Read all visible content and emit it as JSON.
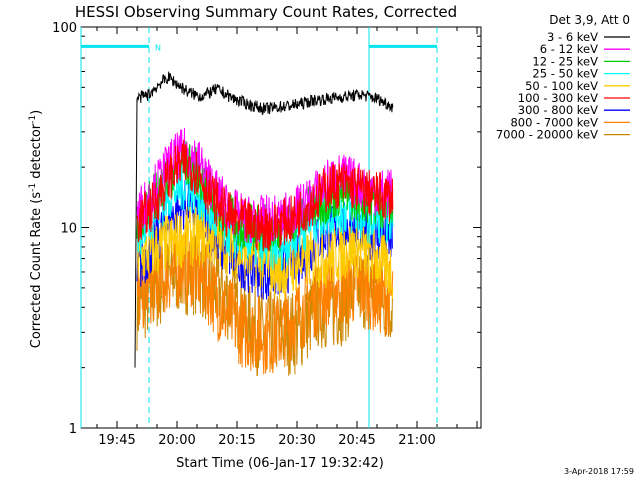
{
  "chart_data": {
    "type": "line",
    "title": "HESSI Observing Summary Count Rates, Corrected",
    "xlabel": "Start Time (06-Jan-17 19:32:42)",
    "ylabel_main": "Corrected Count Rate (s",
    "ylabel_sup1": "-1",
    "ylabel_mid": " detector",
    "ylabel_sup2": "-1",
    "ylabel_end": ")",
    "yscale": "log",
    "ylim": [
      1,
      100
    ],
    "xlim_min": [
      36,
      136
    ],
    "x_ticks": [
      {
        "min": 45,
        "label": "19:45"
      },
      {
        "min": 60,
        "label": "20:00"
      },
      {
        "min": 75,
        "label": "20:15"
      },
      {
        "min": 90,
        "label": "20:30"
      },
      {
        "min": 105,
        "label": "20:45"
      },
      {
        "min": 120,
        "label": "21:00"
      }
    ],
    "y_ticks": [
      {
        "value": 1,
        "label": "1"
      },
      {
        "value": 10,
        "label": "10"
      },
      {
        "value": 100,
        "label": "100"
      }
    ],
    "legend_header": "Det 3,9, Att 0",
    "series": [
      {
        "name": "3 - 6 keV",
        "color": "#000000",
        "x": [
          49.5,
          50,
          53,
          56,
          58,
          60,
          63,
          66,
          70,
          74,
          78,
          82,
          86,
          90,
          94,
          98,
          102,
          106,
          110,
          114
        ],
        "values": [
          2,
          44,
          46,
          53,
          56,
          52,
          47,
          45,
          49,
          44,
          41,
          39,
          40,
          41,
          43,
          44,
          45,
          46,
          44,
          40
        ]
      },
      {
        "name": "6 - 12 keV",
        "color": "#ff00ff",
        "x": [
          50,
          53,
          56,
          59,
          62,
          65,
          68,
          71,
          74,
          77,
          80,
          83,
          86,
          89,
          92,
          95,
          98,
          101,
          104,
          107,
          110,
          114
        ],
        "values": [
          12,
          14,
          18,
          22,
          24,
          22,
          17,
          14,
          12,
          11,
          11,
          11,
          11,
          12,
          13,
          15,
          17,
          18,
          17,
          16,
          15,
          15
        ]
      },
      {
        "name": "12 - 25 keV",
        "color": "#00cc00",
        "x": [
          50,
          53,
          56,
          59,
          62,
          65,
          68,
          71,
          74,
          77,
          80,
          83,
          86,
          89,
          92,
          95,
          98,
          101,
          104,
          107,
          110,
          114
        ],
        "values": [
          11,
          13,
          16,
          19,
          21,
          19,
          15,
          12,
          11,
          10,
          10,
          10,
          10,
          11,
          12,
          13,
          14,
          15,
          14,
          14,
          13,
          13
        ]
      },
      {
        "name": "25 - 50 keV",
        "color": "#00ffff",
        "x": [
          50,
          53,
          56,
          59,
          62,
          65,
          68,
          71,
          74,
          77,
          80,
          83,
          86,
          89,
          92,
          95,
          98,
          101,
          104,
          107,
          110,
          114
        ],
        "values": [
          9,
          11,
          13,
          15,
          16,
          15,
          12,
          10,
          9,
          9,
          8,
          8,
          8,
          9,
          10,
          11,
          12,
          12,
          12,
          11,
          11,
          11
        ]
      },
      {
        "name": "50 - 100 keV",
        "color": "#ffcc00",
        "x": [
          50,
          56,
          62,
          68,
          74,
          80,
          86,
          92,
          98,
          104,
          110,
          114
        ],
        "values": [
          7,
          8,
          9,
          9,
          8,
          7,
          6,
          7,
          7,
          8,
          7,
          6
        ]
      },
      {
        "name": "100 - 300 keV",
        "color": "#ff0000",
        "x": [
          50,
          53,
          56,
          59,
          62,
          65,
          68,
          71,
          74,
          77,
          80,
          83,
          86,
          89,
          92,
          95,
          98,
          101,
          104,
          107,
          110,
          114
        ],
        "values": [
          10.5,
          12,
          15,
          19,
          21,
          19,
          15,
          12.5,
          11,
          10.5,
          10,
          10,
          10.5,
          11,
          12.5,
          14,
          16,
          16.5,
          16,
          15,
          14.5,
          14
        ]
      },
      {
        "name": "300 - 800 keV",
        "color": "#0000ff",
        "x": [
          50,
          53,
          56,
          59,
          62,
          65,
          68,
          71,
          74,
          77,
          80,
          83,
          86,
          89,
          92,
          95,
          98,
          101,
          104,
          107,
          110,
          114
        ],
        "values": [
          6,
          7.5,
          9.5,
          11.5,
          13,
          12,
          10,
          8,
          7,
          6.5,
          6,
          5.8,
          6,
          6.5,
          7.5,
          8.5,
          9.5,
          10,
          10,
          9.5,
          9,
          8.5
        ]
      },
      {
        "name": "800 - 7000 keV",
        "color": "#ff8000",
        "x": [
          50,
          53,
          56,
          59,
          62,
          65,
          68,
          71,
          74,
          77,
          80,
          83,
          86,
          89,
          92,
          95,
          98,
          101,
          104,
          107,
          110,
          114
        ],
        "values": [
          4.5,
          5,
          5.5,
          6,
          6.5,
          6,
          5,
          4,
          3.5,
          3,
          3,
          2.8,
          3,
          3.5,
          4,
          4.5,
          5,
          5,
          5,
          5,
          4.5,
          4.5
        ]
      },
      {
        "name": "7000 - 20000 keV",
        "color": "#cc8800",
        "x": [
          50,
          55,
          60,
          65,
          70,
          75,
          80,
          85,
          90,
          95,
          100,
          105,
          110,
          114
        ],
        "values": [
          4,
          5,
          6,
          6,
          5,
          4,
          3,
          3,
          3,
          4,
          4,
          5,
          5,
          4
        ]
      }
    ],
    "attenuator_bars": [
      {
        "x_start": 36,
        "x_end": 53,
        "y": 80
      },
      {
        "x_start": 108,
        "x_end": 125,
        "y": 80
      }
    ],
    "night_label": "N",
    "solid_marker_x": [
      36,
      108
    ],
    "dashed_marker_x": [
      53,
      125
    ]
  },
  "footer": {
    "timestamp": "3-Apr-2018 17:59"
  }
}
